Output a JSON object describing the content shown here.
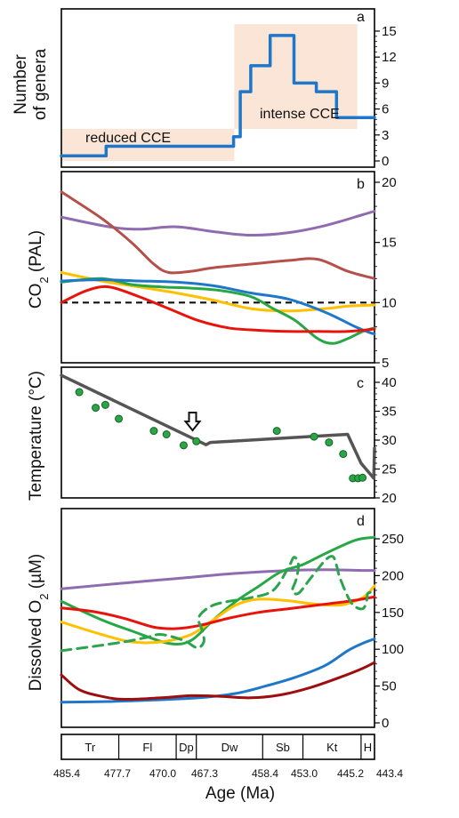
{
  "colors": {
    "blue": "#1f77c9",
    "brown": "#b5504a",
    "purple": "#8f6bb0",
    "yellow": "#ffc000",
    "green": "#28a745",
    "red": "#e8140c",
    "darkred": "#9e0e0e",
    "gray": "#555555",
    "shade": "#fbe5d6",
    "dashed_green": "#2ea34d"
  },
  "axis": {
    "xlabel": "Age (Ma)",
    "ages": [
      "485.4",
      "477.7",
      "470.0",
      "467.3",
      "458.4",
      "453.0",
      "445.2",
      "443.4"
    ],
    "stages": [
      "Tr",
      "Fl",
      "Dp",
      "Dw",
      "Sb",
      "Kt",
      "H"
    ]
  },
  "chart_data": [
    {
      "panel": "a",
      "type": "line",
      "ylabel_line1": "Number",
      "ylabel_line2": "of genera",
      "yticks": [
        "0",
        "3",
        "6",
        "9",
        "12",
        "15"
      ],
      "ylim": [
        0,
        16
      ],
      "annotations": [
        "reduced CCE",
        "intense CCE"
      ],
      "series": [
        {
          "color": "blue",
          "step": true,
          "x": [
            485.4,
            479.4,
            479.4,
            462.3,
            462.3,
            461.4,
            461.4,
            460.0,
            460.0,
            457.4,
            457.4,
            454.2,
            454.2,
            451.2,
            451.2,
            448.5,
            448.5,
            445.6,
            445.6,
            444.0,
            444.0,
            443.4
          ],
          "y": [
            0.6,
            0.6,
            1.7,
            1.7,
            2.8,
            2.8,
            8.0,
            8.0,
            11.0,
            11.0,
            14.5,
            14.5,
            9.0,
            9.0,
            8.0,
            8.0,
            5.0,
            5.0,
            5.0,
            5.0,
            5.0,
            5.0
          ]
        }
      ]
    },
    {
      "panel": "b",
      "type": "line",
      "ylabel": "CO2 (PAL)",
      "yticks": [
        "5",
        "10",
        "15",
        "20"
      ],
      "ylim": [
        5,
        20.5
      ],
      "series": [
        {
          "color": "purple",
          "x": [
            485.4,
            479,
            475,
            470,
            465,
            460,
            455,
            450,
            445,
            443.4
          ],
          "y": [
            17.1,
            16.3,
            16.1,
            16.3,
            15.9,
            15.6,
            15.8,
            16.4,
            17.3,
            17.6
          ]
        },
        {
          "color": "brown",
          "x": [
            485.4,
            480,
            476,
            473,
            471,
            468,
            465,
            460,
            455,
            451,
            447,
            443.4
          ],
          "y": [
            19.2,
            17.0,
            15.0,
            13.2,
            12.5,
            12.6,
            12.9,
            13.2,
            13.5,
            13.6,
            12.6,
            12.0
          ]
        },
        {
          "color": "yellow",
          "x": [
            485.4,
            480,
            475,
            470,
            465,
            460,
            455,
            450,
            447,
            443.4
          ],
          "y": [
            12.5,
            11.8,
            11.3,
            10.8,
            10.2,
            9.5,
            9.3,
            9.5,
            9.7,
            9.8
          ]
        },
        {
          "color": "green",
          "x": [
            485.4,
            480,
            476,
            472,
            468,
            464,
            460,
            457,
            454,
            451,
            449,
            447,
            445,
            443.4
          ],
          "y": [
            11.7,
            12.0,
            11.5,
            11.3,
            11.2,
            11.0,
            10.5,
            9.5,
            8.5,
            7.0,
            6.6,
            7.0,
            7.6,
            7.9
          ]
        },
        {
          "color": "blue",
          "x": [
            485.4,
            480,
            475,
            470,
            465,
            460,
            455,
            450,
            446,
            444,
            443.4
          ],
          "y": [
            11.8,
            11.9,
            11.8,
            11.7,
            11.4,
            10.8,
            10.3,
            9.2,
            8.0,
            7.5,
            7.4
          ]
        },
        {
          "color": "red",
          "x": [
            485.4,
            482,
            479,
            475,
            471,
            467,
            463,
            459,
            455,
            451,
            447,
            443.4
          ],
          "y": [
            10.0,
            11.0,
            11.3,
            10.5,
            9.5,
            8.5,
            7.9,
            7.7,
            7.6,
            7.6,
            7.6,
            7.8
          ]
        }
      ],
      "reference_line": {
        "y": 10,
        "style": "dashed"
      }
    },
    {
      "panel": "c",
      "type": "line",
      "ylabel": "Temperature (°C)",
      "yticks": [
        "20",
        "25",
        "30",
        "35",
        "40"
      ],
      "ylim": [
        20,
        42
      ],
      "trend": {
        "color": "gray",
        "x": [
          485.4,
          466.0,
          465.4,
          447.0,
          445.2,
          443.5,
          443.4
        ],
        "y": [
          41.2,
          29.2,
          29.6,
          31.0,
          26.0,
          23.4,
          28.6
        ]
      },
      "points": {
        "color": "green",
        "x": [
          483.0,
          480.8,
          479.5,
          477.7,
          473.0,
          471.3,
          469.0,
          467.3,
          456.5,
          451.5,
          449.5,
          447.6,
          446.3,
          445.6,
          445.0
        ],
        "y": [
          38.3,
          35.6,
          36.1,
          33.7,
          31.6,
          31.0,
          29.1,
          29.8,
          31.6,
          30.6,
          29.6,
          27.6,
          23.4,
          23.4,
          23.5
        ]
      },
      "arrow_at": 467.8
    },
    {
      "panel": "d",
      "type": "line",
      "ylabel": "Dissolved O2 (µM)",
      "yticks": [
        "0",
        "50",
        "100",
        "150",
        "200",
        "250"
      ],
      "ylim": [
        0,
        265
      ],
      "series": [
        {
          "color": "purple",
          "x": [
            485.4,
            478,
            470,
            462,
            455,
            450,
            445,
            443.4
          ],
          "y": [
            182,
            189,
            196,
            203,
            207,
            208,
            207,
            207
          ]
        },
        {
          "color": "green",
          "x": [
            485.4,
            480,
            476,
            471,
            468,
            465,
            462,
            459,
            456,
            453,
            450,
            446,
            443.4
          ],
          "y": [
            165,
            140,
            125,
            108,
            112,
            140,
            165,
            185,
            205,
            215,
            230,
            248,
            252
          ]
        },
        {
          "color": "yellow",
          "x": [
            485.4,
            480,
            476,
            472,
            468,
            465,
            462,
            459,
            455,
            452,
            448,
            445,
            443.4
          ],
          "y": [
            137,
            120,
            110,
            110,
            120,
            140,
            160,
            168,
            166,
            162,
            160,
            170,
            186
          ]
        },
        {
          "color": "red",
          "x": [
            485.4,
            481,
            477,
            473,
            470,
            467,
            463,
            459,
            455,
            451,
            447,
            443.4
          ],
          "y": [
            156,
            151,
            142,
            130,
            128,
            132,
            142,
            150,
            155,
            160,
            165,
            171
          ]
        },
        {
          "color": "blue",
          "x": [
            485.4,
            479,
            473,
            467,
            462,
            458,
            454,
            450,
            447,
            445,
            443.4
          ],
          "y": [
            28,
            29,
            31,
            34,
            40,
            50,
            62,
            78,
            98,
            108,
            114
          ]
        },
        {
          "color": "darkred",
          "x": [
            485.4,
            483,
            480,
            477,
            472,
            468,
            464,
            460,
            456,
            452,
            448,
            445,
            443.4
          ],
          "y": [
            65,
            45,
            36,
            32,
            34,
            37,
            36,
            34,
            38,
            48,
            62,
            74,
            82
          ]
        }
      ],
      "dashed_series": {
        "color": "dashed_green",
        "x": [
          485.4,
          481,
          477,
          474,
          472,
          469,
          467.2,
          466.3,
          466.5,
          467.0,
          466.5,
          465,
          463,
          460,
          457,
          455,
          454.2,
          453.6,
          453.9,
          454.4,
          453.6,
          452,
          450,
          449,
          448.5,
          448.0,
          446.5,
          445.0,
          444.4,
          444.3,
          443.4
        ],
        "y": [
          98,
          104,
          110,
          116,
          120,
          112,
          102,
          110,
          125,
          140,
          150,
          160,
          165,
          170,
          180,
          210,
          225,
          215,
          195,
          180,
          176,
          196,
          221,
          226,
          214,
          196,
          163,
          155,
          168,
          176,
          178
        ]
      }
    }
  ],
  "panel_labels": [
    "a",
    "b",
    "c",
    "d"
  ]
}
